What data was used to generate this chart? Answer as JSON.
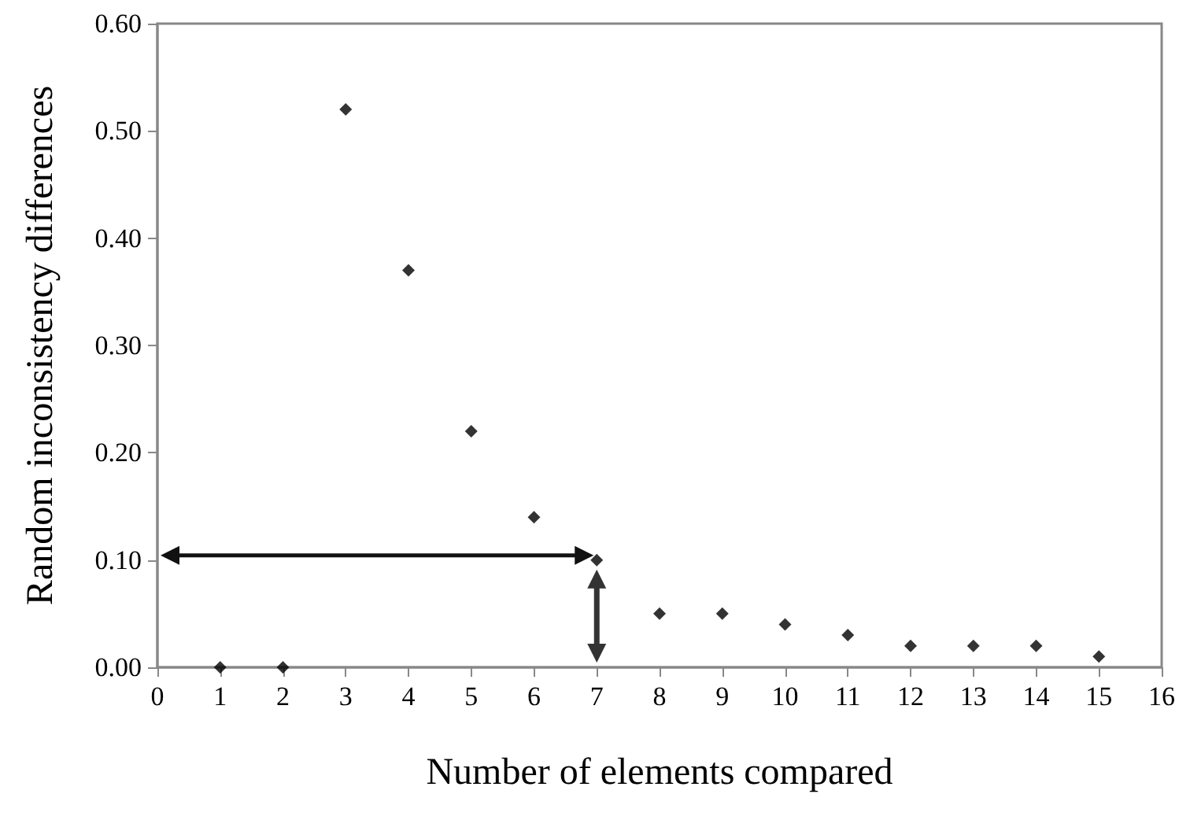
{
  "chart_data": {
    "type": "scatter",
    "xlabel": "Number of elements compared",
    "ylabel": "Random inconsistency differences",
    "x": [
      1,
      2,
      3,
      4,
      5,
      6,
      7,
      8,
      9,
      10,
      11,
      12,
      13,
      14,
      15
    ],
    "series": [
      {
        "color": "#000000",
        "values": [
          0,
          0,
          0.52,
          0.37,
          0.22,
          0.14,
          0.1,
          0.05,
          0.05,
          0.04,
          0.03,
          0.02,
          0.02,
          0.02,
          0.01
        ]
      }
    ],
    "xlim": [
      0,
      16
    ],
    "xticks": [
      0,
      1,
      2,
      3,
      4,
      5,
      6,
      7,
      8,
      9,
      10,
      11,
      12,
      13,
      14,
      15,
      16
    ],
    "ylim": [
      0,
      0.6
    ],
    "yticks": [
      {
        "value": 0,
        "label": "0.00"
      },
      {
        "value": 0.1,
        "label": "0.10"
      },
      {
        "value": 0.2,
        "label": "0.20"
      },
      {
        "value": 0.3,
        "label": "0.30"
      },
      {
        "value": 0.4,
        "label": "0.40"
      },
      {
        "value": 0.5,
        "label": "0.50"
      },
      {
        "value": 0.6,
        "label": "0.60"
      }
    ],
    "grid": false,
    "marker": "diamond"
  }
}
